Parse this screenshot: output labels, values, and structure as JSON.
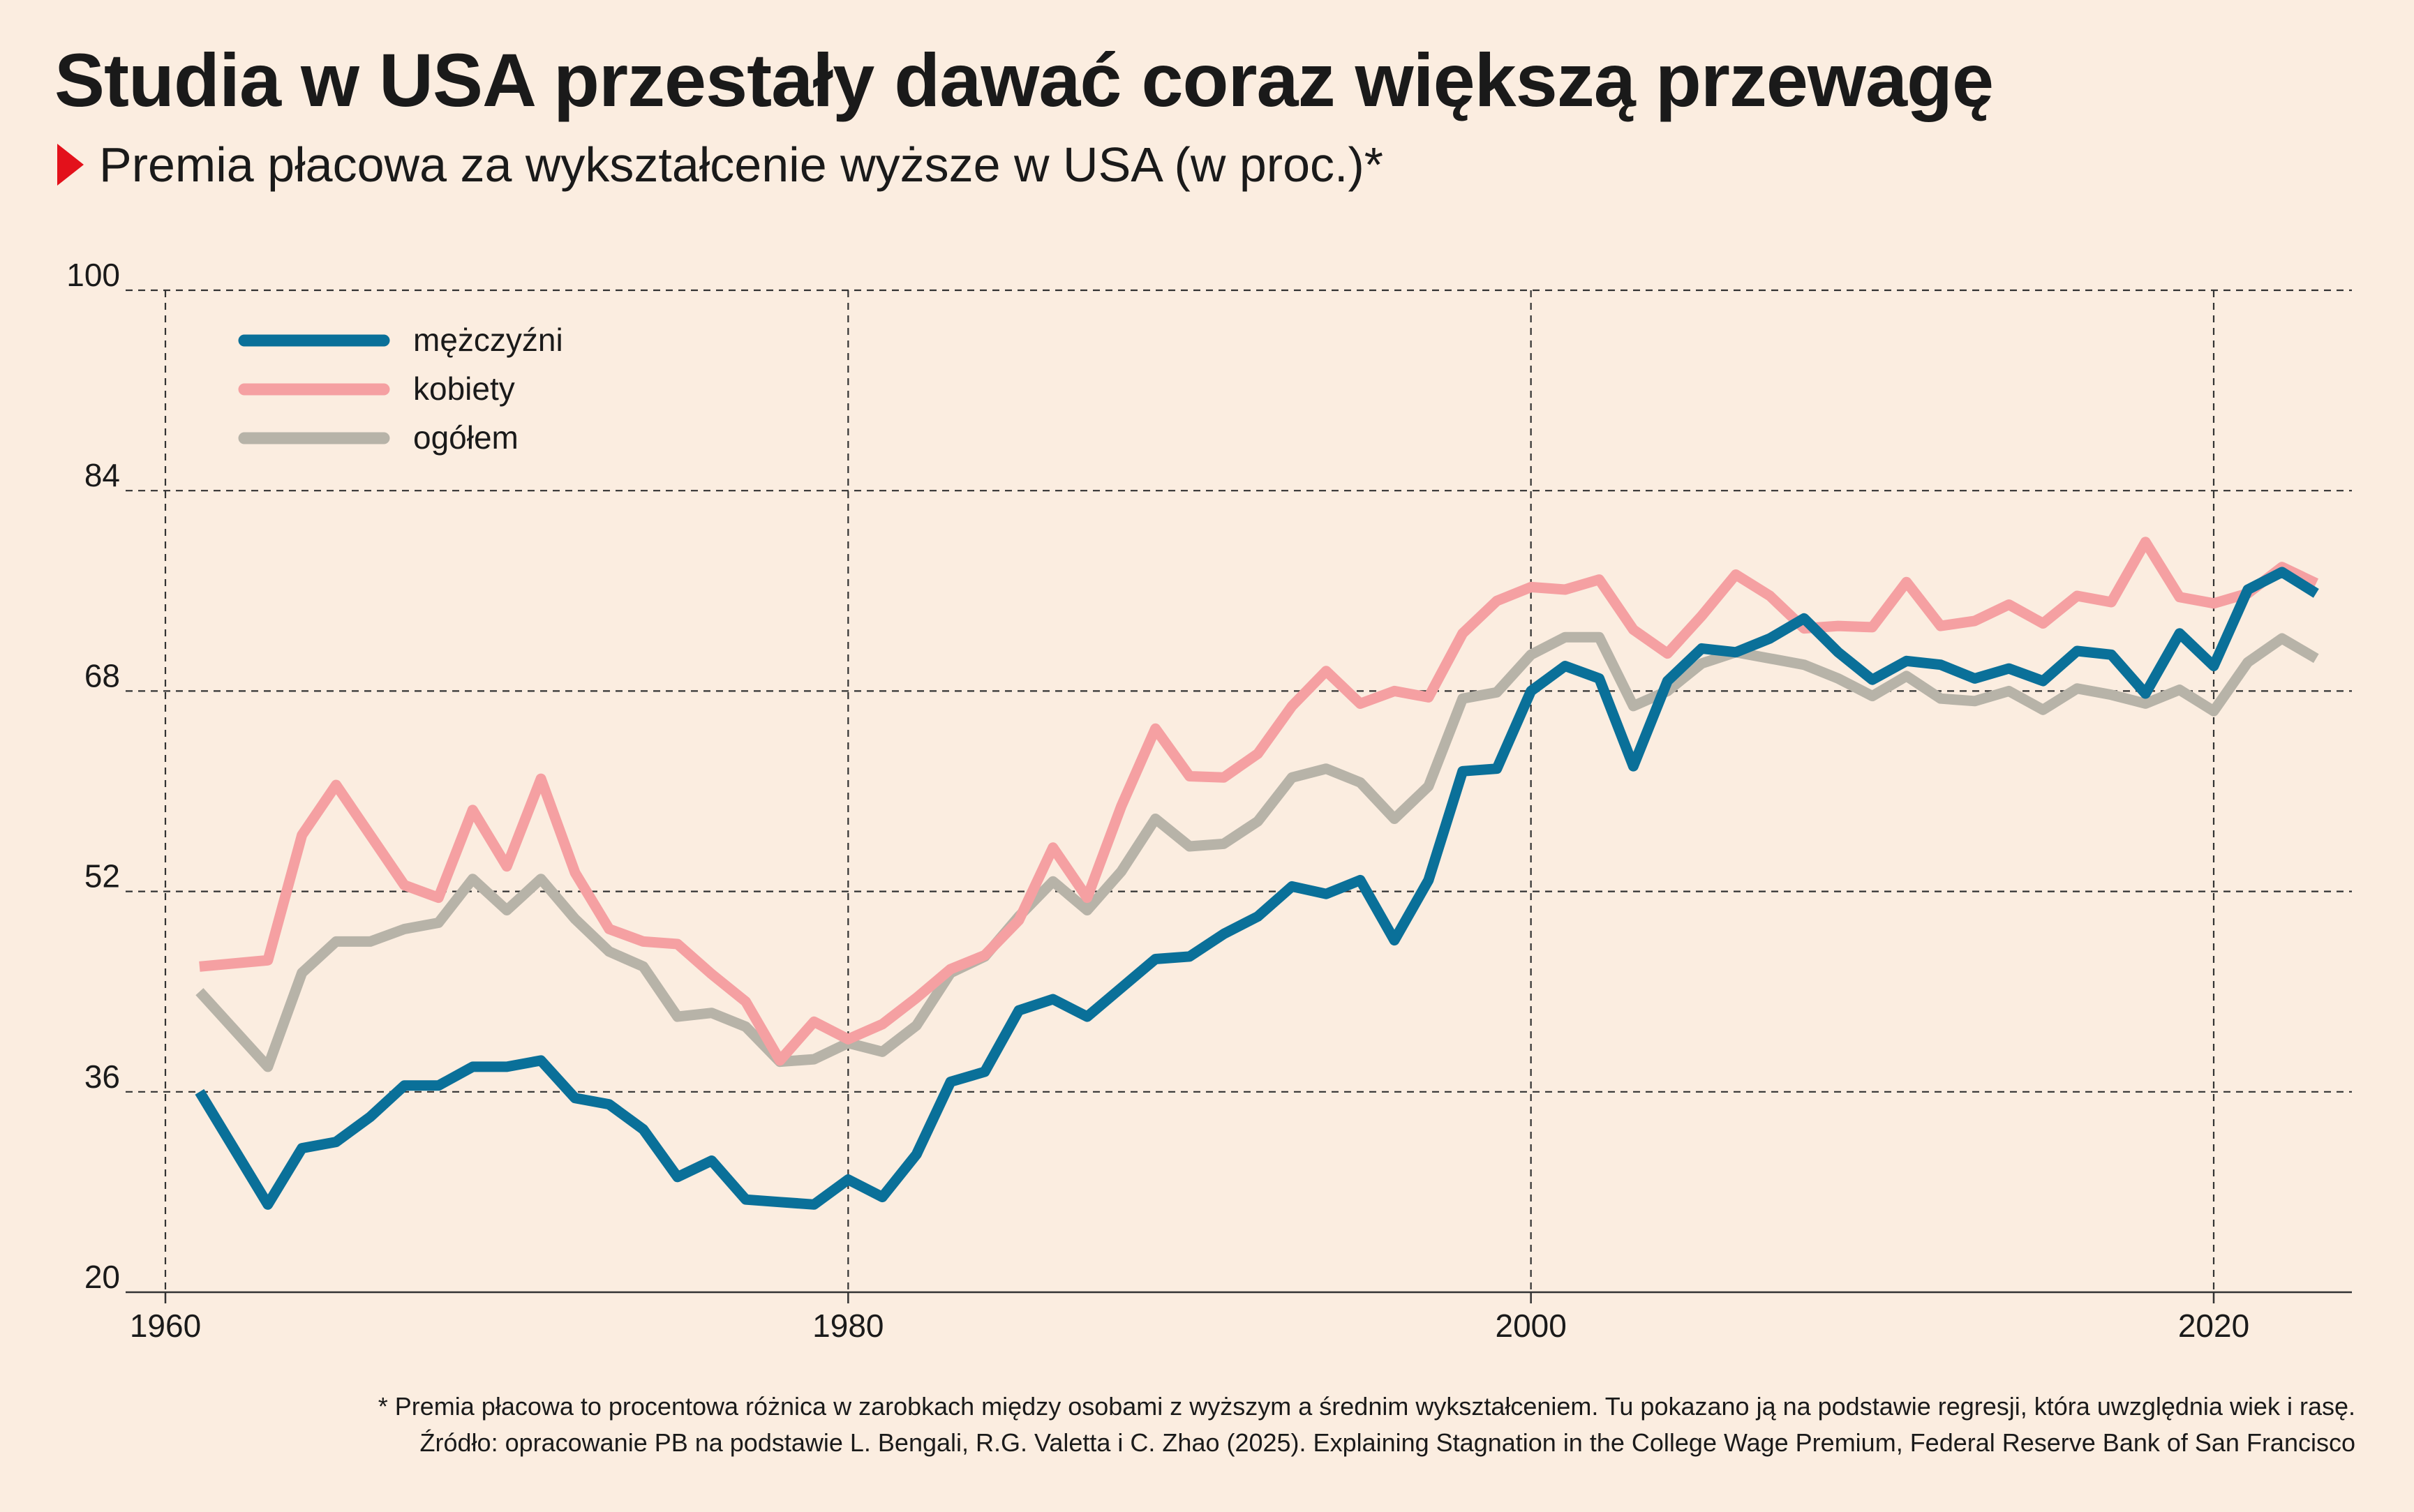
{
  "title": "Studia w USA przestały dawać coraz większą przewagę",
  "subtitle": "Premia płacowa za wykształcenie wyższe w USA (w proc.)*",
  "footnote": {
    "line1": "* Premia płacowa to procentowa różnica w zarobkach między osobami z wyższym a średnim wykształceniem. Tu pokazano ją na podstawie regresji, która uwzględnia wiek i rasę.",
    "line2": "Źródło: opracowanie PB na podstawie L. Bengali, R.G. Valetta i C. Zhao (2025). Explaining Stagnation in the College Wage Premium, Federal Reserve Bank of San Francisco"
  },
  "colors": {
    "background": "#fbede0",
    "men": "#0a7099",
    "women": "#f5a0a2",
    "total": "#b7b3a8",
    "accent": "#e3111b",
    "grid": "#333333"
  },
  "chart_data": {
    "type": "line",
    "xlim": [
      1960,
      2024
    ],
    "ylim": [
      20,
      100
    ],
    "xticks": [
      1960,
      1980,
      2000,
      2020
    ],
    "yticks": [
      20,
      36,
      52,
      68,
      84,
      100
    ],
    "grid": true,
    "legend_position": "top-left",
    "x": [
      1961,
      1963,
      1964,
      1965,
      1966,
      1967,
      1968,
      1969,
      1970,
      1971,
      1972,
      1973,
      1974,
      1975,
      1976,
      1977,
      1978,
      1979,
      1980,
      1981,
      1982,
      1983,
      1984,
      1985,
      1986,
      1987,
      1988,
      1989,
      1990,
      1991,
      1992,
      1993,
      1994,
      1995,
      1996,
      1997,
      1998,
      1999,
      2000,
      2001,
      2002,
      2003,
      2004,
      2005,
      2006,
      2007,
      2008,
      2009,
      2010,
      2011,
      2012,
      2013,
      2014,
      2015,
      2016,
      2017,
      2018,
      2019,
      2020,
      2021,
      2022,
      2023
    ],
    "series": [
      {
        "name": "mężczyźni",
        "color": "#0a7099",
        "values": [
          36.0,
          27.0,
          31.5,
          32.0,
          34.0,
          36.5,
          36.5,
          38.0,
          38.0,
          38.5,
          35.5,
          35.0,
          33.0,
          29.2,
          30.5,
          27.4,
          27.2,
          27.0,
          29.0,
          27.6,
          31.0,
          36.8,
          37.6,
          42.5,
          43.4,
          42.0,
          44.3,
          46.6,
          46.8,
          48.6,
          50.0,
          52.4,
          51.8,
          52.9,
          48.1,
          52.9,
          61.6,
          61.8,
          68.0,
          70.0,
          69.0,
          62.0,
          68.8,
          71.4,
          71.1,
          72.2,
          73.8,
          71.1,
          68.9,
          70.4,
          70.1,
          69.0,
          69.8,
          68.8,
          71.2,
          70.9,
          67.8,
          72.6,
          70.0,
          76.1,
          77.5,
          75.8
        ],
        "_note": "values in percent"
      },
      {
        "name": "kobiety",
        "color": "#f5a0a2",
        "values": [
          46.0,
          46.5,
          56.5,
          60.5,
          56.5,
          52.5,
          51.5,
          58.5,
          54.0,
          61.0,
          53.5,
          49.0,
          48.0,
          47.8,
          45.4,
          43.2,
          38.5,
          41.6,
          40.2,
          41.4,
          43.5,
          45.8,
          46.9,
          49.7,
          55.5,
          51.5,
          58.8,
          65.0,
          61.2,
          61.1,
          63.0,
          66.8,
          69.6,
          67.0,
          68.0,
          67.5,
          72.6,
          75.2,
          76.3,
          76.1,
          76.9,
          72.9,
          71.0,
          74.0,
          77.3,
          75.6,
          73.0,
          73.2,
          73.1,
          76.7,
          73.2,
          73.6,
          74.9,
          73.4,
          75.6,
          75.1,
          79.9,
          75.5,
          75.0,
          75.8,
          77.9,
          76.6
        ],
        "_note": "values in percent"
      },
      {
        "name": "ogółem",
        "color": "#b7b3a8",
        "values": [
          44.0,
          38.0,
          45.5,
          48.0,
          48.0,
          49.0,
          49.5,
          53.0,
          50.5,
          53.0,
          49.8,
          47.2,
          46.0,
          42.0,
          42.3,
          41.2,
          38.4,
          38.6,
          39.9,
          39.2,
          41.3,
          45.5,
          46.8,
          50.0,
          52.8,
          50.5,
          53.6,
          57.8,
          55.6,
          55.8,
          57.6,
          61.1,
          61.8,
          60.7,
          57.8,
          60.4,
          67.4,
          67.9,
          70.9,
          72.3,
          72.3,
          66.8,
          68.0,
          70.2,
          71.1,
          70.6,
          70.1,
          69.0,
          67.6,
          69.2,
          67.4,
          67.2,
          68.0,
          66.5,
          68.2,
          67.7,
          67.0,
          68.1,
          66.4,
          70.3,
          72.2,
          70.6
        ],
        "_note": "values in percent"
      }
    ]
  }
}
